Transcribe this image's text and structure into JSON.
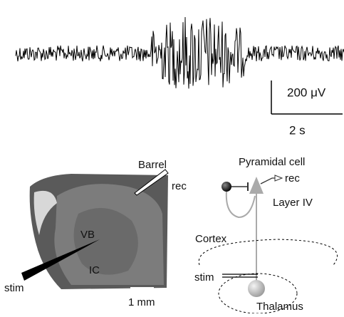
{
  "trace": {
    "amplitude_scale": "200 μV",
    "time_scale": "2 s"
  },
  "slice": {
    "barrel": "Barrel",
    "rec": "rec",
    "vb": "VB",
    "ic": "IC",
    "stim": "stim",
    "scale": "1 mm"
  },
  "schematic": {
    "pyramidal": "Pyramidal cell",
    "rec": "rec",
    "layer": "Layer IV",
    "cortex": "Cortex",
    "stim": "stim",
    "thalamus": "Thalamus"
  }
}
